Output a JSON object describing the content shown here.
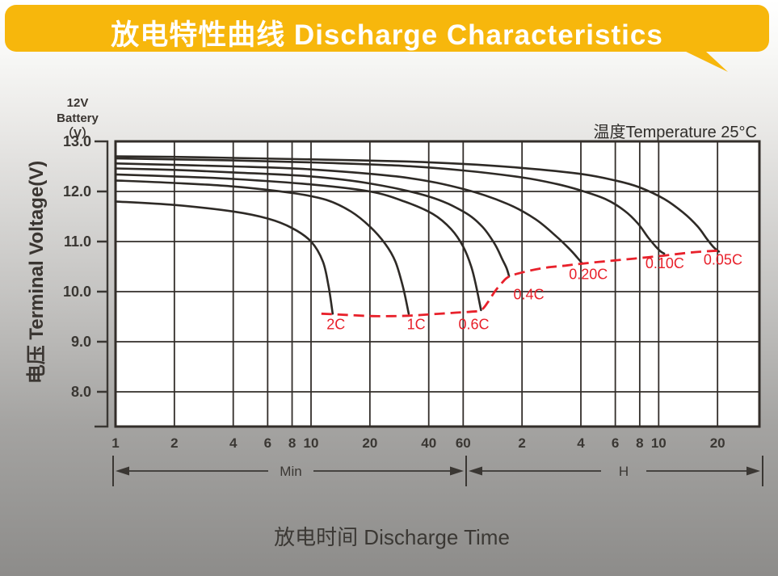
{
  "banner": {
    "title": "放电特性曲线 Discharge Characteristics"
  },
  "battery_label": {
    "lines": [
      "12V",
      "Battery",
      "（V）"
    ]
  },
  "temperature_note": "温度Temperature 25°C",
  "y_axis": {
    "title": "电压 Terminal Voltage(V)",
    "ticks": [
      "13.0",
      "12.0",
      "11.0",
      "10.0",
      "9.0",
      "8.0"
    ],
    "tick_values": [
      13,
      12,
      11,
      10,
      9,
      8
    ]
  },
  "x_axis": {
    "title": "放电时间 Discharge Time",
    "minute_ticks": [
      1,
      2,
      4,
      6,
      8,
      10,
      20,
      40,
      60
    ],
    "hour_ticks": [
      2,
      4,
      6,
      8,
      10,
      20
    ],
    "minute_unit": "Min",
    "hour_unit": "H"
  },
  "chart_data": {
    "type": "line",
    "x_scale": "log",
    "x_unit": "minutes",
    "x_range": [
      1,
      1950
    ],
    "y_unit": "V",
    "y_range": [
      7.3,
      13.0
    ],
    "grid": {
      "x_minutes": [
        2,
        4,
        6,
        8,
        10,
        20,
        40,
        60
      ],
      "x_hours": [
        2,
        4,
        6,
        8,
        10,
        20
      ],
      "y_volts": [
        12,
        11,
        10,
        9,
        8
      ]
    },
    "series": [
      {
        "name": "0.05C",
        "points": [
          [
            1,
            12.7
          ],
          [
            2,
            12.69
          ],
          [
            4,
            12.67
          ],
          [
            10,
            12.64
          ],
          [
            30,
            12.6
          ],
          [
            60,
            12.55
          ],
          [
            120,
            12.47
          ],
          [
            240,
            12.35
          ],
          [
            360,
            12.22
          ],
          [
            480,
            12.08
          ],
          [
            640,
            11.85
          ],
          [
            800,
            11.58
          ],
          [
            950,
            11.3
          ],
          [
            1060,
            11.05
          ],
          [
            1150,
            10.88
          ],
          [
            1220,
            10.8
          ]
        ]
      },
      {
        "name": "0.10C",
        "points": [
          [
            1,
            12.66
          ],
          [
            2,
            12.64
          ],
          [
            4,
            12.62
          ],
          [
            10,
            12.58
          ],
          [
            30,
            12.51
          ],
          [
            60,
            12.42
          ],
          [
            120,
            12.28
          ],
          [
            180,
            12.15
          ],
          [
            240,
            12.02
          ],
          [
            320,
            11.85
          ],
          [
            400,
            11.62
          ],
          [
            470,
            11.36
          ],
          [
            530,
            11.08
          ],
          [
            580,
            10.9
          ],
          [
            615,
            10.8
          ],
          [
            640,
            10.76
          ]
        ]
      },
      {
        "name": "0.20C",
        "points": [
          [
            1,
            12.56
          ],
          [
            2,
            12.53
          ],
          [
            4,
            12.5
          ],
          [
            10,
            12.44
          ],
          [
            30,
            12.28
          ],
          [
            60,
            12.05
          ],
          [
            100,
            11.76
          ],
          [
            140,
            11.45
          ],
          [
            180,
            11.1
          ],
          [
            210,
            10.85
          ],
          [
            230,
            10.68
          ],
          [
            244,
            10.56
          ]
        ]
      },
      {
        "name": "0.4C",
        "points": [
          [
            1,
            12.46
          ],
          [
            2,
            12.43
          ],
          [
            4,
            12.38
          ],
          [
            10,
            12.3
          ],
          [
            20,
            12.16
          ],
          [
            40,
            11.9
          ],
          [
            60,
            11.6
          ],
          [
            75,
            11.3
          ],
          [
            87,
            10.95
          ],
          [
            95,
            10.65
          ],
          [
            100,
            10.47
          ],
          [
            103,
            10.31
          ]
        ]
      },
      {
        "name": "0.6C",
        "points": [
          [
            1,
            12.34
          ],
          [
            2,
            12.3
          ],
          [
            4,
            12.25
          ],
          [
            10,
            12.14
          ],
          [
            20,
            12.0
          ],
          [
            30,
            11.8
          ],
          [
            42,
            11.55
          ],
          [
            52,
            11.25
          ],
          [
            60,
            10.9
          ],
          [
            66,
            10.5
          ],
          [
            70,
            10.1
          ],
          [
            74,
            9.63
          ]
        ]
      },
      {
        "name": "1C",
        "points": [
          [
            1,
            12.22
          ],
          [
            2,
            12.17
          ],
          [
            4,
            12.1
          ],
          [
            8,
            11.97
          ],
          [
            12,
            11.83
          ],
          [
            16,
            11.6
          ],
          [
            20,
            11.3
          ],
          [
            24,
            10.95
          ],
          [
            27,
            10.6
          ],
          [
            29.5,
            10.1
          ],
          [
            31.6,
            9.56
          ]
        ]
      },
      {
        "name": "2C",
        "points": [
          [
            1,
            11.8
          ],
          [
            2,
            11.73
          ],
          [
            4,
            11.6
          ],
          [
            6,
            11.46
          ],
          [
            8,
            11.27
          ],
          [
            10,
            11.0
          ],
          [
            11.5,
            10.6
          ],
          [
            12.3,
            10.1
          ],
          [
            12.9,
            9.56
          ]
        ]
      }
    ],
    "cutoff_curve": {
      "name": "discharge-cutoff",
      "style": "dashed",
      "points": [
        [
          11.3,
          9.56
        ],
        [
          12.9,
          9.55
        ],
        [
          16,
          9.53
        ],
        [
          22,
          9.51
        ],
        [
          31.6,
          9.52
        ],
        [
          42,
          9.55
        ],
        [
          55,
          9.58
        ],
        [
          66,
          9.6
        ],
        [
          74,
          9.63
        ],
        [
          80,
          9.78
        ],
        [
          87,
          10.0
        ],
        [
          95,
          10.18
        ],
        [
          103,
          10.3
        ],
        [
          125,
          10.4
        ],
        [
          160,
          10.48
        ],
        [
          200,
          10.52
        ],
        [
          244,
          10.56
        ],
        [
          330,
          10.61
        ],
        [
          450,
          10.66
        ],
        [
          640,
          10.72
        ],
        [
          820,
          10.77
        ],
        [
          1000,
          10.8
        ],
        [
          1220,
          10.82
        ]
      ]
    },
    "series_labels": [
      {
        "text": "2C",
        "t_min": 13.4,
        "volts": 9.25
      },
      {
        "text": "1C",
        "t_min": 34.5,
        "volts": 9.25
      },
      {
        "text": "0.6C",
        "t_min": 68,
        "volts": 9.25
      },
      {
        "text": "0.4C",
        "t_min": 130,
        "volts": 9.85
      },
      {
        "text": "0.20C",
        "t_min": 262,
        "volts": 10.25
      },
      {
        "text": "0.10C",
        "t_min": 645,
        "volts": 10.47
      },
      {
        "text": "0.05C",
        "t_min": 1280,
        "volts": 10.54
      }
    ]
  },
  "colors": {
    "banner": "#F7B70C",
    "curve": "#2E2A26",
    "grid": "#332E2A",
    "cutoff": "#E8212B",
    "text": "#3A3733",
    "plot_bg": "#FFFFFF",
    "background_top": "#FFFFFF",
    "background_bottom": "#8D8C8A"
  }
}
